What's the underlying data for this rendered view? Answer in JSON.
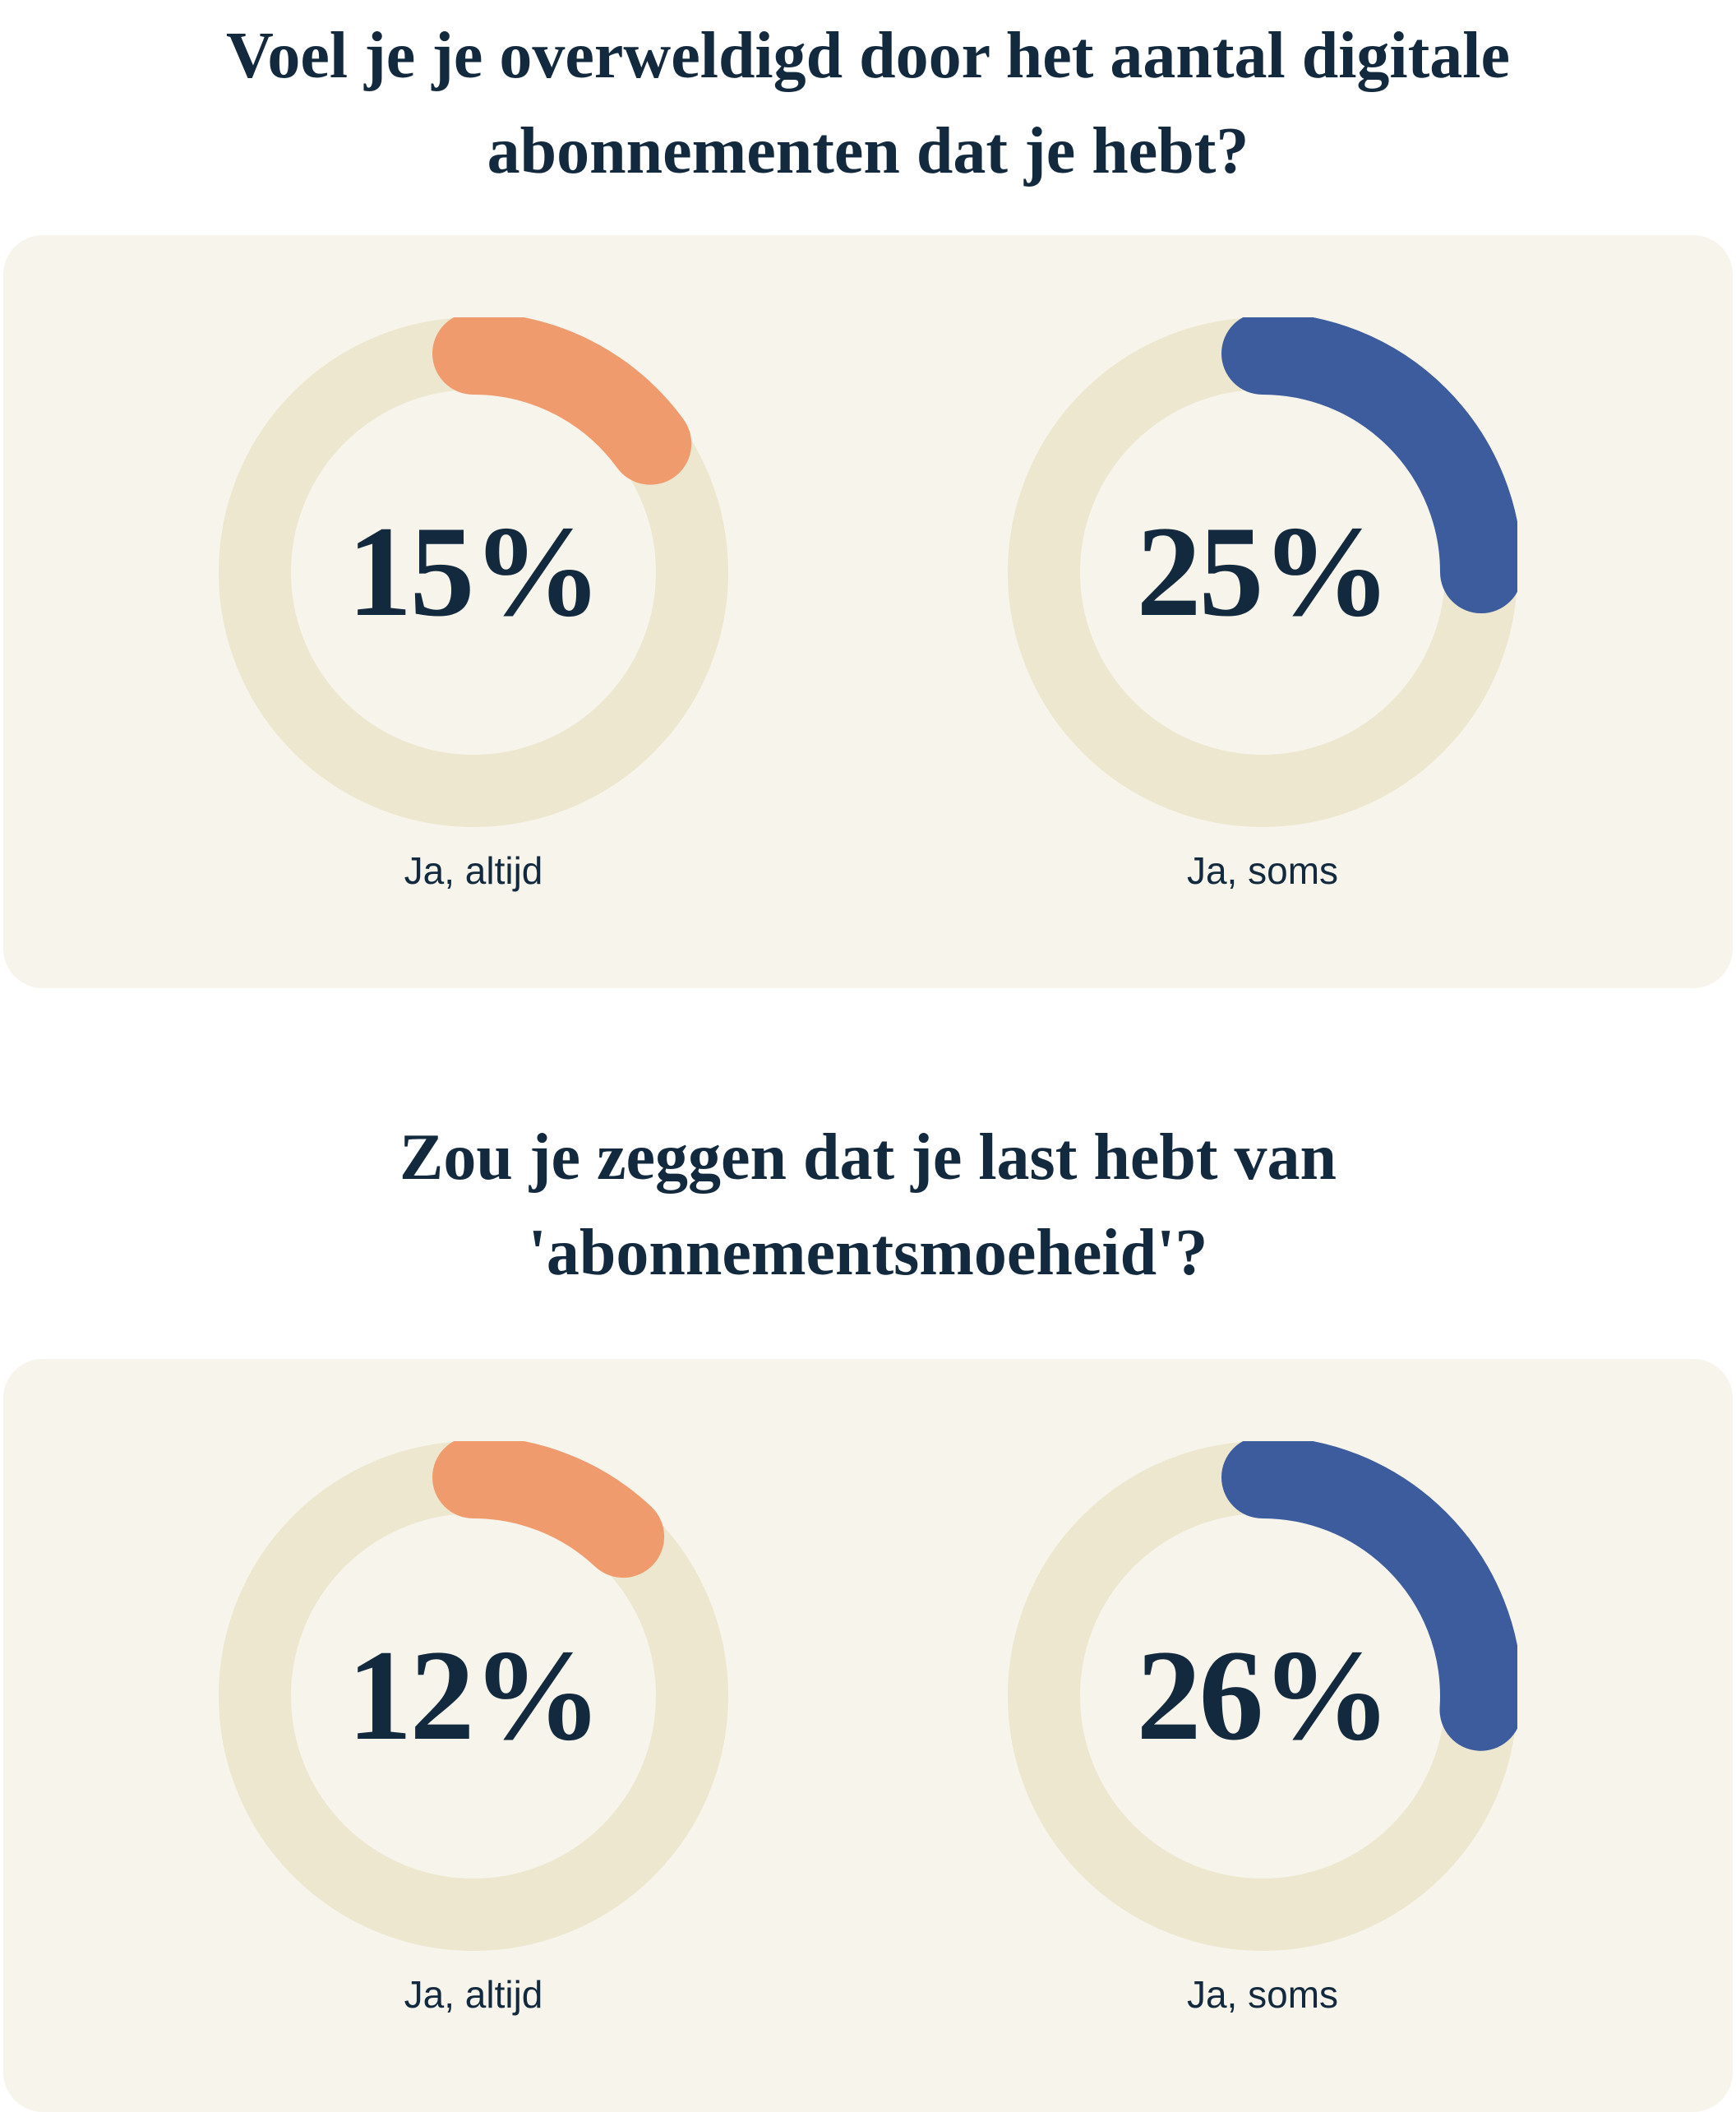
{
  "colors": {
    "navy": "#13293d",
    "card_bg": "#f7f4ec",
    "track": "#ede7cf",
    "orange": "#f09b6d",
    "blue": "#3d5c9d",
    "page_bg": "#ffffff"
  },
  "sections": [
    {
      "question": "Voel je je overweldigd door het aantal digitale abonnementen dat je hebt?",
      "question_lines": [
        "Voel je je overweldigd door het aantal digitale",
        "abonnementen dat je hebt?"
      ],
      "charts": [
        {
          "value": 15,
          "display": "15%",
          "label": "Ja, altijd",
          "color_key": "orange"
        },
        {
          "value": 25,
          "display": "25%",
          "label": "Ja, soms",
          "color_key": "blue"
        }
      ]
    },
    {
      "question": "Zou je zeggen dat je last hebt van 'abonnementsmoeheid'?",
      "question_lines": [
        "Zou je zeggen dat je last hebt van",
        "'abonnementsmoeheid'?"
      ],
      "charts": [
        {
          "value": 12,
          "display": "12%",
          "label": "Ja, altijd",
          "color_key": "orange"
        },
        {
          "value": 26,
          "display": "26%",
          "label": "Ja, soms",
          "color_key": "blue"
        }
      ]
    }
  ],
  "chart_data": [
    {
      "type": "pie",
      "style": "donut-progress",
      "title": "Voel je je overweldigd door het aantal digitale abonnementen dat je hebt?",
      "categories": [
        "Ja, altijd",
        "Ja, soms"
      ],
      "values": [
        15,
        25
      ],
      "unit": "%",
      "colors": [
        "#f09b6d",
        "#3d5c9d"
      ],
      "track_color": "#ede7cf",
      "start_angle_deg": 0,
      "direction": "clockwise",
      "center_labels": [
        "15%",
        "25%"
      ]
    },
    {
      "type": "pie",
      "style": "donut-progress",
      "title": "Zou je zeggen dat je last hebt van 'abonnementsmoeheid'?",
      "categories": [
        "Ja, altijd",
        "Ja, soms"
      ],
      "values": [
        12,
        26
      ],
      "unit": "%",
      "colors": [
        "#f09b6d",
        "#3d5c9d"
      ],
      "track_color": "#ede7cf",
      "start_angle_deg": 0,
      "direction": "clockwise",
      "center_labels": [
        "12%",
        "26%"
      ]
    }
  ]
}
